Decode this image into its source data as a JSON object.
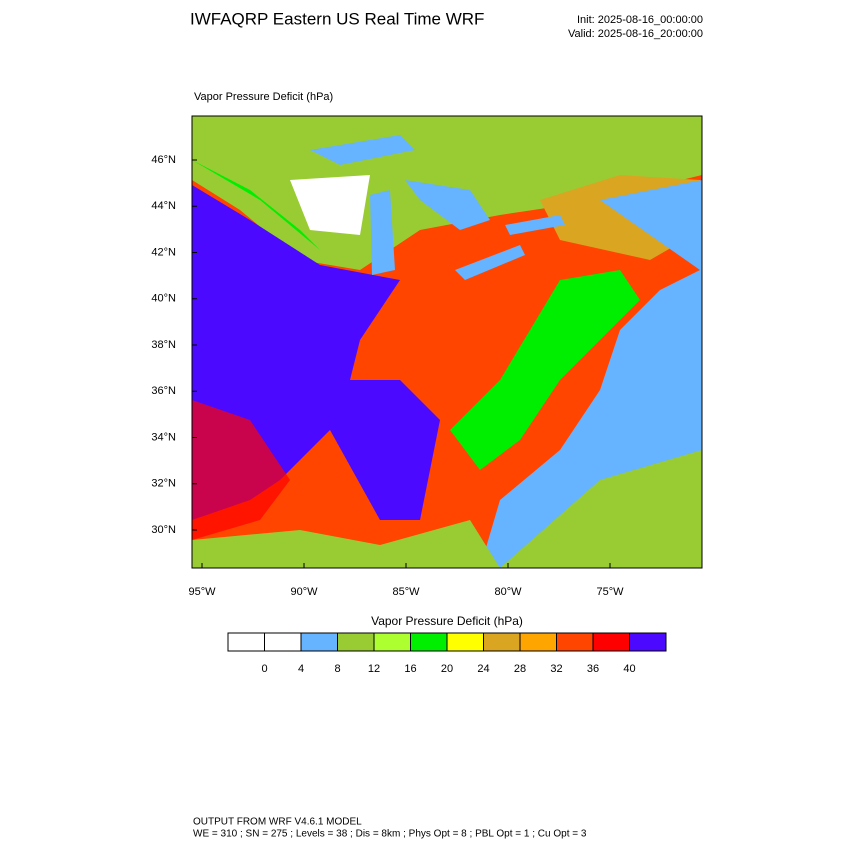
{
  "header": {
    "title": "IWFAQRP Eastern US Real Time WRF",
    "init": "Init: 2025-08-16_00:00:00",
    "valid": "Valid: 2025-08-16_20:00:00"
  },
  "map": {
    "title": "Vapor Pressure Deficit   (hPa)",
    "lat_ticks": [
      "30°N",
      "32°N",
      "34°N",
      "36°N",
      "38°N",
      "40°N",
      "42°N",
      "44°N",
      "46°N"
    ],
    "lon_ticks": [
      "95°W",
      "90°W",
      "85°W",
      "80°W",
      "75°W"
    ]
  },
  "colorbar": {
    "title": "Vapor Pressure Deficit  (hPa)",
    "colors": [
      "#ffffff",
      "#ffffff",
      "#66b3ff",
      "#99cc33",
      "#adff2f",
      "#00ee00",
      "#ffff00",
      "#daa520",
      "#ffa500",
      "#ff4500",
      "#ff0000",
      "#4b0aff"
    ],
    "labels": [
      0,
      4,
      8,
      12,
      16,
      20,
      24,
      28,
      32,
      36,
      40
    ]
  },
  "footer": {
    "line1": "OUTPUT FROM WRF V4.6.1 MODEL",
    "line2": "WE = 310 ; SN = 275 ; Levels = 38 ; Dis = 8km ; Phys Opt = 8 ; PBL Opt = 1 ; Cu Opt = 3"
  }
}
